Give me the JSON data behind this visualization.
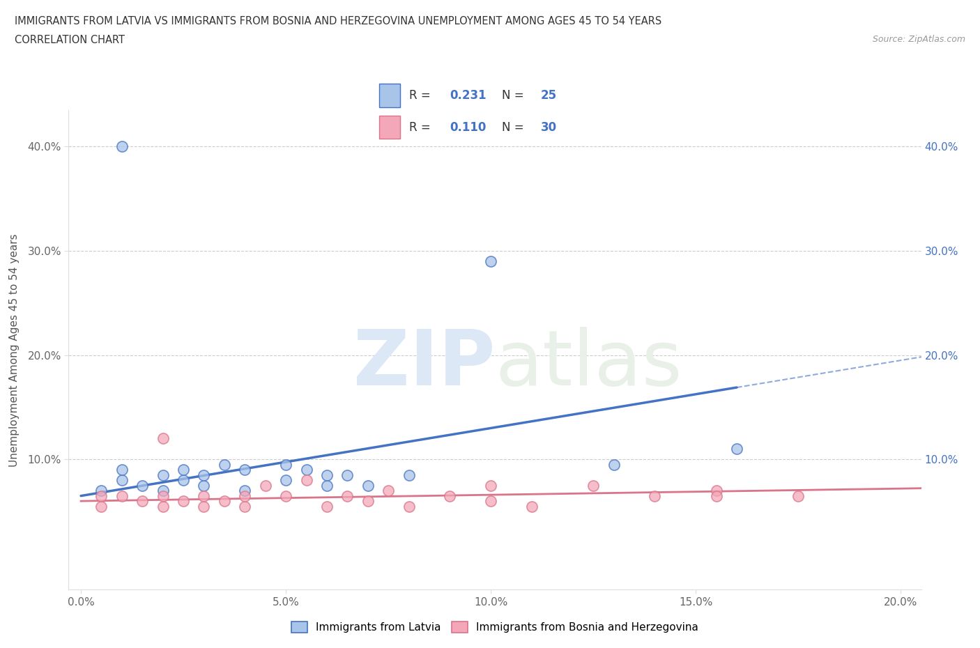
{
  "title_line1": "IMMIGRANTS FROM LATVIA VS IMMIGRANTS FROM BOSNIA AND HERZEGOVINA UNEMPLOYMENT AMONG AGES 45 TO 54 YEARS",
  "title_line2": "CORRELATION CHART",
  "source_text": "Source: ZipAtlas.com",
  "ylabel": "Unemployment Among Ages 45 to 54 years",
  "xlim": [
    -0.003,
    0.205
  ],
  "ylim": [
    -0.025,
    0.435
  ],
  "xtick_labels": [
    "0.0%",
    "5.0%",
    "10.0%",
    "15.0%",
    "20.0%"
  ],
  "xtick_vals": [
    0.0,
    0.05,
    0.1,
    0.15,
    0.2
  ],
  "ytick_labels": [
    "10.0%",
    "20.0%",
    "30.0%",
    "40.0%"
  ],
  "ytick_vals": [
    0.1,
    0.2,
    0.3,
    0.4
  ],
  "latvia_color": "#A8C4E8",
  "bosnia_color": "#F4A7B9",
  "latvia_line_color": "#4472C4",
  "bosnia_line_color": "#D9748A",
  "r_latvia": 0.231,
  "n_latvia": 25,
  "r_bosnia": 0.11,
  "n_bosnia": 30,
  "legend_label_latvia": "Immigrants from Latvia",
  "legend_label_bosnia": "Immigrants from Bosnia and Herzegovina",
  "latvia_x": [
    0.01,
    0.005,
    0.01,
    0.015,
    0.02,
    0.02,
    0.025,
    0.025,
    0.03,
    0.03,
    0.035,
    0.04,
    0.04,
    0.05,
    0.05,
    0.055,
    0.06,
    0.06,
    0.065,
    0.07,
    0.08,
    0.1,
    0.13,
    0.16,
    0.01
  ],
  "latvia_y": [
    0.08,
    0.07,
    0.09,
    0.075,
    0.07,
    0.085,
    0.08,
    0.09,
    0.075,
    0.085,
    0.095,
    0.07,
    0.09,
    0.08,
    0.095,
    0.09,
    0.075,
    0.085,
    0.085,
    0.075,
    0.085,
    0.29,
    0.095,
    0.11,
    0.4
  ],
  "bosnia_x": [
    0.005,
    0.005,
    0.01,
    0.015,
    0.02,
    0.02,
    0.02,
    0.025,
    0.03,
    0.03,
    0.035,
    0.04,
    0.04,
    0.045,
    0.05,
    0.055,
    0.06,
    0.065,
    0.07,
    0.075,
    0.08,
    0.09,
    0.1,
    0.1,
    0.11,
    0.125,
    0.14,
    0.155,
    0.155,
    0.175
  ],
  "bosnia_y": [
    0.055,
    0.065,
    0.065,
    0.06,
    0.055,
    0.065,
    0.12,
    0.06,
    0.055,
    0.065,
    0.06,
    0.055,
    0.065,
    0.075,
    0.065,
    0.08,
    0.055,
    0.065,
    0.06,
    0.07,
    0.055,
    0.065,
    0.06,
    0.075,
    0.055,
    0.075,
    0.065,
    0.07,
    0.065,
    0.065
  ],
  "latvia_trend_x0": 0.0,
  "latvia_trend_y0": 0.065,
  "latvia_trend_x1": 0.2,
  "latvia_trend_y1": 0.195,
  "latvia_trend_solid_end": 0.16,
  "bosnia_trend_x0": 0.0,
  "bosnia_trend_y0": 0.06,
  "bosnia_trend_x1": 0.2,
  "bosnia_trend_y1": 0.072,
  "bosnia_trend_solid_end": 0.155
}
